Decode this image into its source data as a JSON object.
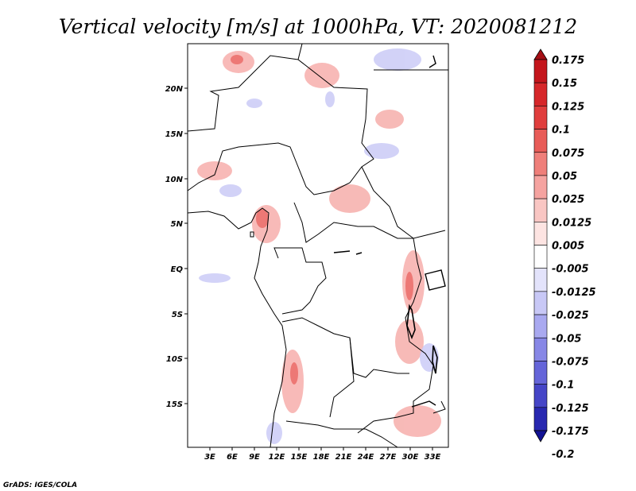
{
  "title": "Vertical velocity [m/s] at 1000hPa, VT: 2020081212",
  "credit": "GrADS: IGES/COLA",
  "map": {
    "lat_labels": [
      "20N",
      "15N",
      "10N",
      "5N",
      "EQ",
      "5S",
      "10S",
      "15S"
    ],
    "lon_labels": [
      "3E",
      "6E",
      "9E",
      "12E",
      "15E",
      "18E",
      "21E",
      "24E",
      "27E",
      "30E",
      "33E"
    ]
  },
  "colorbar": {
    "labels": [
      "0.175",
      "0.15",
      "0.125",
      "0.1",
      "0.075",
      "0.05",
      "0.025",
      "0.0125",
      "0.005",
      "-0.005",
      "-0.0125",
      "-0.025",
      "-0.05",
      "-0.075",
      "-0.1",
      "-0.125",
      "-0.175",
      "-0.2"
    ],
    "colors": [
      "#a50f15",
      "#c4161c",
      "#d6272a",
      "#e03e3d",
      "#e85c58",
      "#ef7f7a",
      "#f5a3a0",
      "#f9c6c3",
      "#fde4e2",
      "#ffffff",
      "#e3e3fb",
      "#c8c8f6",
      "#a9a9f0",
      "#8787e6",
      "#6565d9",
      "#4545c7",
      "#2828b0",
      "#121294"
    ]
  }
}
